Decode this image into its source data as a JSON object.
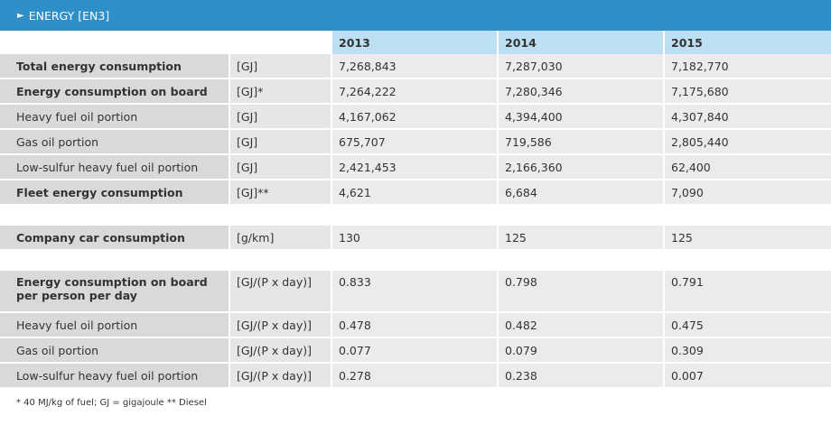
{
  "header": {
    "title": "ENERGY [EN3]"
  },
  "years": [
    "2013",
    "2014",
    "2015"
  ],
  "block1": [
    {
      "label": "Total energy consumption",
      "unit": "[GJ]",
      "bold": true,
      "values": [
        "7,268,843",
        "7,287,030",
        "7,182,770"
      ]
    },
    {
      "label": "Energy consumption on board",
      "unit": "[GJ]*",
      "bold": true,
      "values": [
        "7,264,222",
        "7,280,346",
        "7,175,680"
      ]
    },
    {
      "label": "Heavy fuel oil portion",
      "unit": "[GJ]",
      "bold": false,
      "values": [
        "4,167,062",
        "4,394,400",
        "4,307,840"
      ]
    },
    {
      "label": "Gas oil portion",
      "unit": "[GJ]",
      "bold": false,
      "values": [
        "675,707",
        "719,586",
        "2,805,440"
      ]
    },
    {
      "label": "Low-sulfur heavy fuel oil portion",
      "unit": "[GJ]",
      "bold": false,
      "values": [
        "2,421,453",
        "2,166,360",
        "62,400"
      ]
    },
    {
      "label": "Fleet energy consumption",
      "unit": "[GJ]**",
      "bold": true,
      "values": [
        "4,621",
        "6,684",
        "7,090"
      ]
    }
  ],
  "block2": [
    {
      "label": "Company car consumption",
      "unit": "[g/km]",
      "bold": true,
      "values": [
        "130",
        "125",
        "125"
      ]
    }
  ],
  "block3": [
    {
      "label_line1": "Energy consumption on board",
      "label_line2": "per person per day",
      "unit": "[GJ/(P x day)]",
      "bold": true,
      "values": [
        "0.833",
        "0.798",
        "0.791"
      ]
    },
    {
      "label": "Heavy fuel oil portion",
      "unit": "[GJ/(P x day)]",
      "bold": false,
      "values": [
        "0.478",
        "0.482",
        "0.475"
      ]
    },
    {
      "label": "Gas oil portion",
      "unit": "[GJ/(P x day)]",
      "bold": false,
      "values": [
        "0.077",
        "0.079",
        "0.309"
      ]
    },
    {
      "label": "Low-sulfur heavy fuel oil portion",
      "unit": "[GJ/(P x day)]",
      "bold": false,
      "values": [
        "0.278",
        "0.238",
        "0.007"
      ]
    }
  ],
  "footnote": "* 40 MJ/kg of fuel; GJ = gigajoule  ** Diesel",
  "icons": {
    "header_arrow": "triangle-right-icon"
  },
  "colors": {
    "header_bg": "#2f8fc9",
    "year_header_bg": "#bcdff1",
    "label_bg": "#d9d9d9",
    "cell_bg": "#ebebeb"
  }
}
